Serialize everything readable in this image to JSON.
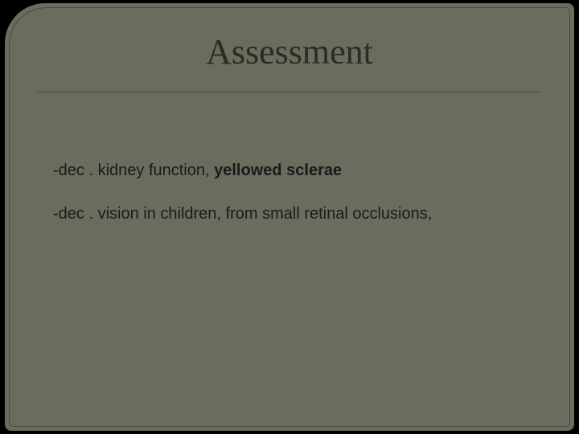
{
  "slide": {
    "title": "Assessment",
    "background_color": "#6b6c5e",
    "outer_background": "#000000",
    "border_color": "#4a4b3f",
    "title_color": "#2b2c22",
    "title_fontsize": 44,
    "title_font": "Georgia, serif",
    "body_color": "#1a1a1a",
    "body_fontsize": 20,
    "body_font": "Arial, sans-serif",
    "corner_radius_tl": 50,
    "bullets": [
      {
        "prefix": "-dec . kidney function, ",
        "bold": "yellowed sclerae",
        "suffix": ""
      },
      {
        "prefix": "-dec  . vision in children, from small retinal occlusions,",
        "bold": "",
        "suffix": ""
      }
    ]
  }
}
